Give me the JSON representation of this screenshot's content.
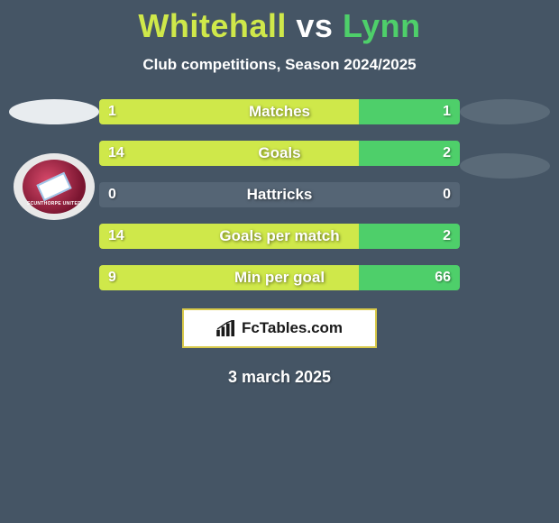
{
  "header": {
    "title_left": "Whitehall",
    "title_vs": "vs",
    "title_right": "Lynn",
    "subtitle": "Club competitions, Season 2024/2025"
  },
  "colors": {
    "title_left": "#cfe84a",
    "title_vs": "#ffffff",
    "title_right": "#4ecf6a",
    "bar_left": "#cfe84a",
    "bar_right": "#4ecf6a",
    "bar_neutral": "#556575",
    "left_ellipse": "#e8ecef",
    "right_ellipse1": "#5a6a78",
    "right_ellipse2": "#5a6a78"
  },
  "stats": [
    {
      "label": "Matches",
      "left_val": "1",
      "right_val": "1",
      "left_pct": 72,
      "right_pct": 28
    },
    {
      "label": "Goals",
      "left_val": "14",
      "right_val": "2",
      "left_pct": 72,
      "right_pct": 28
    },
    {
      "label": "Hattricks",
      "left_val": "0",
      "right_val": "0",
      "left_pct": 72,
      "right_pct": 28,
      "neutral": true
    },
    {
      "label": "Goals per match",
      "left_val": "14",
      "right_val": "2",
      "left_pct": 72,
      "right_pct": 28
    },
    {
      "label": "Min per goal",
      "left_val": "9",
      "right_val": "66",
      "left_pct": 72,
      "right_pct": 28
    }
  ],
  "brand": {
    "icon_name": "bar-chart-icon",
    "text": "FcTables.com"
  },
  "footer": {
    "date": "3 march 2025"
  },
  "logos": {
    "left_crest_label": "SCUNTHORPE UNITED"
  }
}
